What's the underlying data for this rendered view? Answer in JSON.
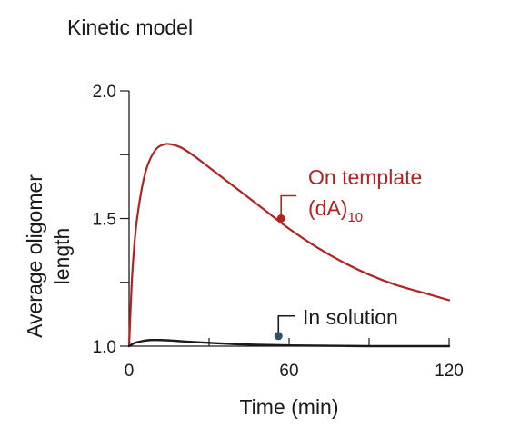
{
  "chart_data": {
    "type": "line",
    "title": "Kinetic model",
    "xlabel": "Time (min)",
    "ylabel_lines": [
      "Average oligomer",
      "length"
    ],
    "xlim": [
      0,
      120
    ],
    "ylim": [
      1.0,
      2.0
    ],
    "xticks": [
      0,
      60,
      120
    ],
    "yticks": [
      1.0,
      1.5,
      2.0
    ],
    "xtick_labels": [
      "0",
      "60",
      "120"
    ],
    "ytick_labels": [
      "1.0",
      "1.5",
      "2.0"
    ],
    "grid": false,
    "series": [
      {
        "name": "On template (dA)10",
        "label_text": "On template",
        "label_text2": "(dA)",
        "label_sub": "10",
        "color": "#b22222",
        "x": [
          0,
          1,
          2,
          3,
          5,
          7,
          10,
          13,
          16,
          20,
          25,
          30,
          40,
          50,
          60,
          70,
          80,
          90,
          100,
          110,
          120
        ],
        "y": [
          1.0,
          1.25,
          1.4,
          1.5,
          1.63,
          1.71,
          1.77,
          1.79,
          1.79,
          1.775,
          1.74,
          1.7,
          1.62,
          1.54,
          1.46,
          1.39,
          1.33,
          1.28,
          1.24,
          1.21,
          1.18
        ]
      },
      {
        "name": "In solution",
        "label_text": "In solution",
        "color": "#1a1a1a",
        "x": [
          0,
          2,
          5,
          8,
          12,
          16,
          20,
          30,
          40,
          50,
          60,
          70,
          80,
          90,
          100,
          110,
          120
        ],
        "y": [
          1.0,
          1.012,
          1.02,
          1.024,
          1.024,
          1.022,
          1.019,
          1.013,
          1.008,
          1.005,
          1.003,
          1.002,
          1.001,
          1.0,
          1.0,
          1.0,
          1.0
        ]
      }
    ],
    "markers": [
      {
        "series": "On template (dA)10",
        "x": 57,
        "y": 1.5,
        "color": "#b22222"
      },
      {
        "series": "In solution",
        "x": 56,
        "y": 1.04,
        "color": "#2f4f6f"
      }
    ]
  }
}
